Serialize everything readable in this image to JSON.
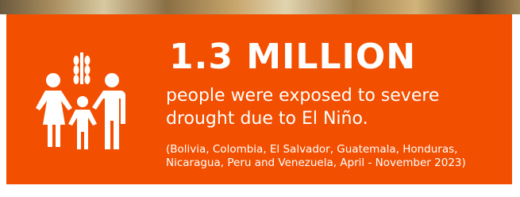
{
  "stat": {
    "headline": "1.3 MILLION",
    "description_lines": [
      "people were exposed to severe",
      "drought due to El Niño."
    ],
    "note_lines": [
      "(Bolivia, Colombia, El Salvador, Guatemala, Honduras,",
      "Nicaragua, Peru and Venezuela, April - November 2023)"
    ]
  }
}
